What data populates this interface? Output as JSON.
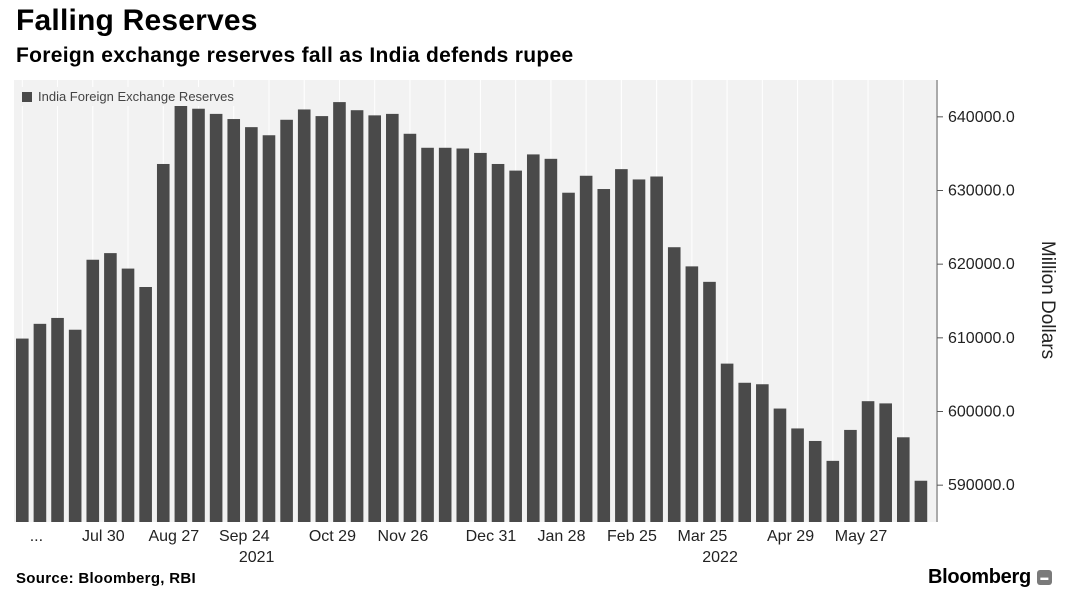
{
  "header": {
    "title": "Falling Reserves",
    "subtitle": "Foreign exchange reserves fall as India defends rupee"
  },
  "footer": {
    "source": "Source: Bloomberg, RBI",
    "brand": "Bloomberg"
  },
  "colors": {
    "bar": "#4a4a4a",
    "plot_background": "#f2f2f2",
    "gridline": "#ffffff"
  },
  "chart_data": {
    "type": "bar",
    "legend": {
      "position": "top-left",
      "entries": [
        "India Foreign Exchange Reserves"
      ]
    },
    "series": [
      {
        "name": "India Foreign Exchange Reserves",
        "values": [
          609900,
          611900,
          612700,
          611100,
          620600,
          621500,
          619400,
          616900,
          633600,
          642500,
          641100,
          640400,
          639700,
          638600,
          637500,
          639600,
          641000,
          640100,
          642000,
          640900,
          640200,
          640400,
          637700,
          635800,
          635800,
          635700,
          635100,
          633600,
          632700,
          634900,
          634300,
          629700,
          632000,
          630200,
          632900,
          631500,
          631900,
          622300,
          619700,
          617600,
          606500,
          603900,
          603700,
          600400,
          597700,
          596000,
          593300,
          597500,
          601400,
          601100,
          596500,
          590600
        ]
      }
    ],
    "xlabels": [
      "...",
      "Jul 30",
      "Aug 27",
      "Sep 24",
      "Oct 29",
      "Nov 26",
      "Dec 31",
      "Jan 28",
      "Feb 25",
      "Mar 25",
      "Apr 29",
      "May 27"
    ],
    "year_labels": [
      "2021",
      "2022"
    ],
    "yticks": [
      "590000.0",
      "600000.0",
      "610000.0",
      "620000.0",
      "630000.0",
      "640000.0"
    ],
    "ylabel": "Million Dollars",
    "ylim": [
      585000,
      645000
    ],
    "y_axis_side": "right",
    "grid": "vertical"
  }
}
